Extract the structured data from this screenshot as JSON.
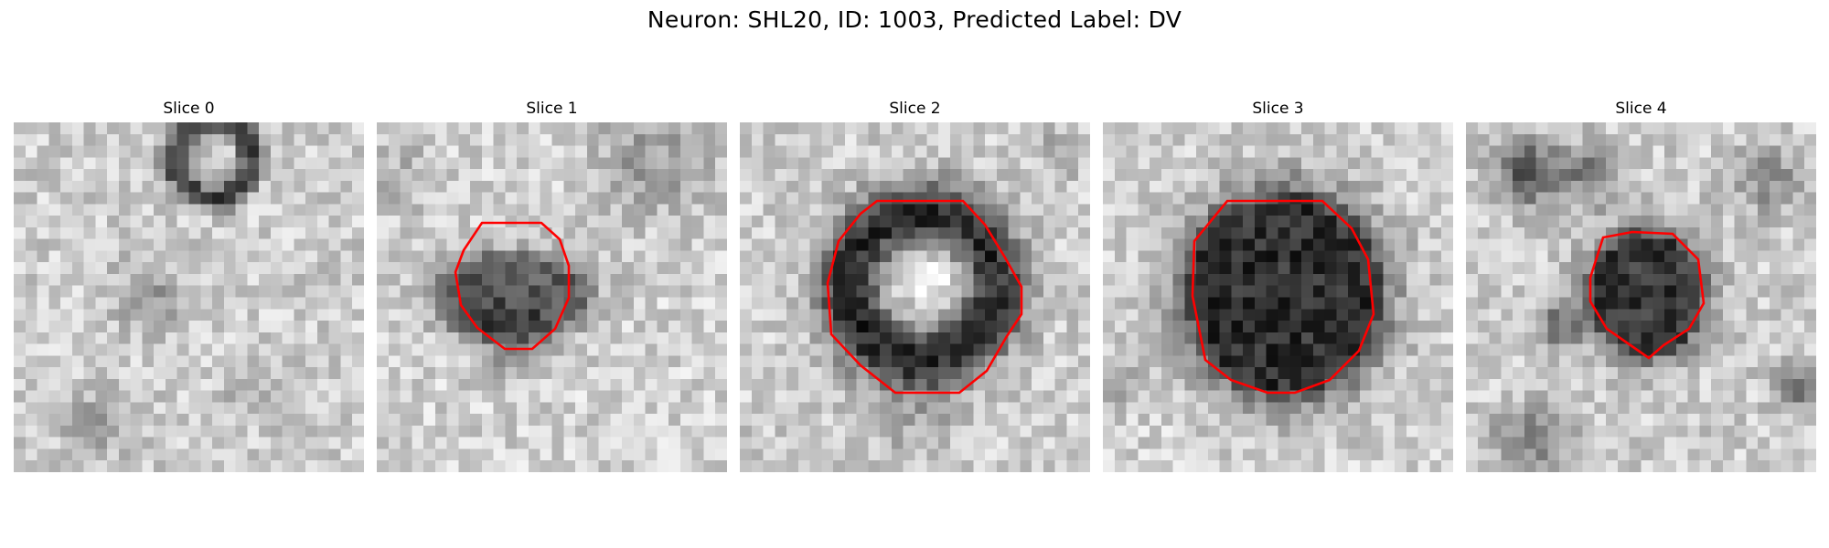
{
  "figure": {
    "title": "Neuron: SHL20, ID: 1003, Predicted Label: DV"
  },
  "slices": [
    {
      "label": "Slice 0",
      "has_contour": false
    },
    {
      "label": "Slice 1",
      "has_contour": true
    },
    {
      "label": "Slice 2",
      "has_contour": true
    },
    {
      "label": "Slice 3",
      "has_contour": true
    },
    {
      "label": "Slice 4",
      "has_contour": true
    }
  ],
  "colors": {
    "background": "#ffffff",
    "contour": "#ff0000",
    "colormap": "grayscale"
  }
}
